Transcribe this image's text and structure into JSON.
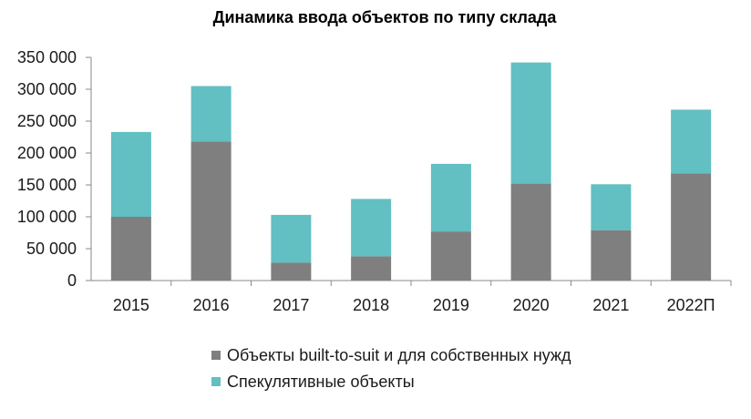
{
  "chart_data": {
    "type": "bar",
    "stacked": true,
    "title": "Динамика ввода объектов по типу склада",
    "xlabel": "",
    "ylabel": "",
    "categories": [
      "2015",
      "2016",
      "2017",
      "2018",
      "2019",
      "2020",
      "2021",
      "2022П"
    ],
    "series": [
      {
        "name": "Объекты built-to-suit и для собственных нужд",
        "color": "#807f7f",
        "values": [
          100000,
          218000,
          28000,
          38000,
          77000,
          152000,
          79000,
          168000
        ]
      },
      {
        "name": "Спекулятивные объекты",
        "color": "#62bfc2",
        "values": [
          133000,
          87000,
          75000,
          90000,
          106000,
          190000,
          72000,
          100000
        ]
      }
    ],
    "ylim": [
      0,
      350000
    ],
    "yticks": [
      0,
      50000,
      100000,
      150000,
      200000,
      250000,
      300000,
      350000
    ],
    "ytick_labels": [
      "0",
      "50 000",
      "100 000",
      "150 000",
      "200 000",
      "250 000",
      "300 000",
      "350 000"
    ],
    "grid": false,
    "legend_position": "bottom"
  }
}
